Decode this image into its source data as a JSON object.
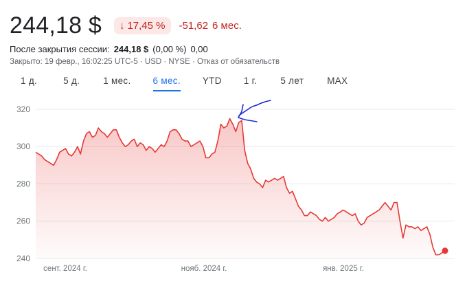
{
  "quote": {
    "price": "244,18 $",
    "change_pct": "17,45 %",
    "change_abs": "-51,62",
    "change_period": "6 мес.",
    "arrow_icon": "arrow-down-icon"
  },
  "after_hours": {
    "label": "После закрытия сессии:",
    "price": "244,18 $",
    "pct": "(0,00 %)",
    "abs": "0,00"
  },
  "meta": "Закрыто: 19 февр., 16:02:25 UTC-5 · USD · NYSE · Отказ от обязательств",
  "tabs": [
    {
      "label": "1 д."
    },
    {
      "label": "5 д."
    },
    {
      "label": "1 мес."
    },
    {
      "label": "6 мес.",
      "active": true
    },
    {
      "label": "YTD"
    },
    {
      "label": "1 г."
    },
    {
      "label": "5 лет"
    },
    {
      "label": "MAX"
    }
  ],
  "colors": {
    "line": "#e53935",
    "negative": "#c5221f",
    "accent": "#1a73e8",
    "annotation": "#1f2bd6"
  },
  "chart_data": {
    "type": "area",
    "y_ticks": [
      "320",
      "300",
      "280",
      "260",
      "240"
    ],
    "x_ticks": [
      "сент. 2024 г.",
      "нояб. 2024 г.",
      "янв. 2025 г."
    ],
    "ylim": [
      240,
      327
    ],
    "grid": true,
    "values": [
      297,
      296,
      295,
      293,
      292,
      291,
      290,
      293,
      297,
      298,
      299,
      296,
      295,
      297,
      300,
      296,
      303,
      307,
      308,
      305,
      306,
      310,
      308,
      307,
      305,
      307,
      309,
      309,
      305,
      302,
      300,
      301,
      303,
      304,
      300,
      302,
      301,
      298,
      300,
      299,
      297,
      299,
      301,
      300,
      303,
      308,
      309,
      309,
      307,
      304,
      303,
      303,
      300,
      301,
      302,
      303,
      300,
      294,
      294,
      296,
      297,
      303,
      312,
      310,
      311,
      315,
      312,
      308,
      313,
      314,
      298,
      291,
      288,
      283,
      281,
      280,
      278,
      282,
      281,
      282,
      283,
      282,
      283,
      284,
      278,
      275,
      276,
      272,
      268,
      266,
      263,
      263,
      265,
      264,
      263,
      261,
      260,
      262,
      260,
      261,
      262,
      264,
      265,
      266,
      265,
      264,
      263,
      264,
      260,
      258,
      259,
      262,
      263,
      264,
      265,
      266,
      268,
      270,
      268,
      266,
      270,
      270,
      260,
      251,
      258,
      257,
      257,
      256,
      257,
      255,
      256,
      257,
      253,
      246,
      242,
      242,
      243,
      244,
      244
    ],
    "last_point": 244.18,
    "annotation": "blue-hand-drawn-arrow"
  }
}
